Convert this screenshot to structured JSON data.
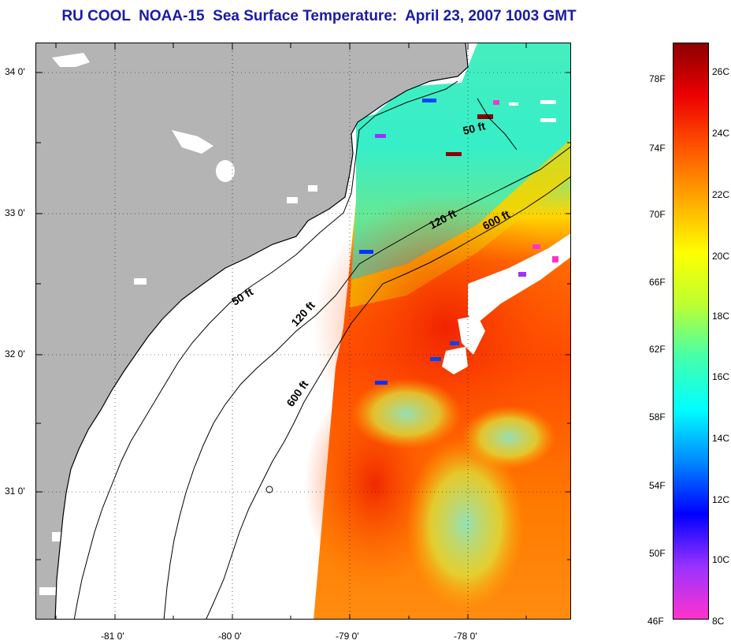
{
  "title": "RU COOL  NOAA-15  Sea Surface Temperature:  April 23, 2007 1003 GMT",
  "map": {
    "lon_ticks": [
      {
        "value": -81,
        "label": "-81 0'"
      },
      {
        "value": -80,
        "label": "-80 0'"
      },
      {
        "value": -79,
        "label": "-79 0'"
      },
      {
        "value": -78,
        "label": "-78 0'"
      }
    ],
    "lat_ticks": [
      {
        "value": 34,
        "label": "34 0'"
      },
      {
        "value": 33,
        "label": "33 0'"
      },
      {
        "value": 32,
        "label": "32 0'"
      },
      {
        "value": 31,
        "label": "31 0'"
      }
    ],
    "contours": [
      {
        "name": "50-ft-isobath",
        "label": "50 ft"
      },
      {
        "name": "120-ft-isobath",
        "label": "120 ft"
      },
      {
        "name": "600-ft-isobath",
        "label": "600 ft"
      }
    ],
    "contour_annotations": [
      "50 ft",
      "120 ft",
      "600 ft",
      "50 ft",
      "120 ft",
      "600 ft"
    ],
    "colors": {
      "land": "#b4b4b4",
      "coastline": "#000000",
      "cloud": "#ffffff",
      "title": "#1a1aa8"
    }
  },
  "colorbar": {
    "fahrenheit_labels": [
      "78F",
      "74F",
      "70F",
      "66F",
      "62F",
      "58F",
      "54F",
      "50F",
      "46F"
    ],
    "celsius_labels": [
      "26C",
      "24C",
      "22C",
      "20C",
      "18C",
      "16C",
      "14C",
      "12C",
      "10C",
      "8C"
    ],
    "range_c": [
      8,
      27
    ],
    "stops": [
      "#ff33cc",
      "#9933ff",
      "#0000ff",
      "#0088ff",
      "#00ffff",
      "#44ffaa",
      "#bbff33",
      "#ffff00",
      "#ffaa00",
      "#ff5500",
      "#ee0000",
      "#8b0000"
    ]
  }
}
